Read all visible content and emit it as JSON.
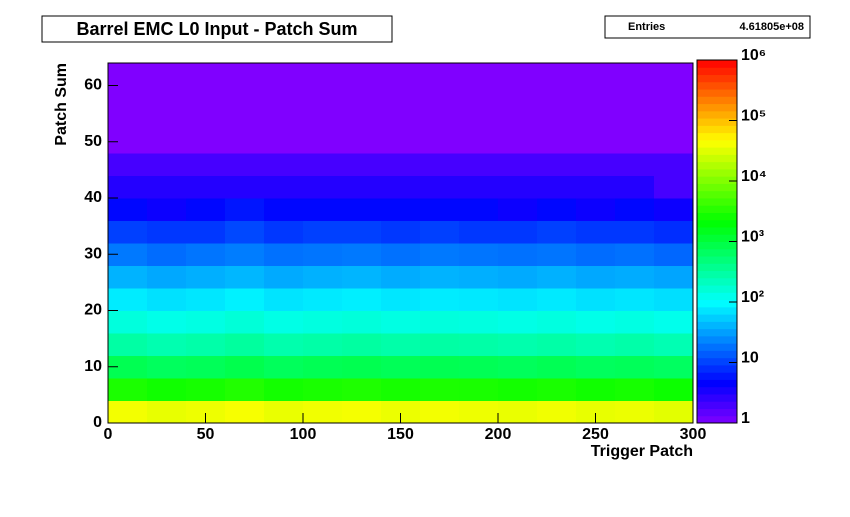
{
  "chart_data": {
    "type": "heatmap",
    "title": "Barrel EMC L0 Input - Patch Sum",
    "stats_label": "Entries",
    "stats_value": "4.61805e+08",
    "x_label": "Trigger Patch",
    "y_label": "Patch Sum",
    "xlim": [
      0,
      300
    ],
    "ylim": [
      0,
      64
    ],
    "xticks": [
      0,
      50,
      100,
      150,
      200,
      250,
      300
    ],
    "yticks": [
      0,
      10,
      20,
      30,
      40,
      50,
      60
    ],
    "xbins": [
      0,
      20,
      40,
      60,
      80,
      100,
      120,
      140,
      160,
      180,
      200,
      220,
      240,
      260,
      280,
      300
    ],
    "ybins": [
      0,
      4,
      8,
      12,
      16,
      20,
      24,
      28,
      32,
      36,
      40,
      44,
      48,
      52,
      56,
      60,
      64
    ],
    "zlim": [
      1,
      1000000
    ],
    "zscale": "log",
    "zticks": [
      {
        "value": 1,
        "label": "1"
      },
      {
        "value": 10,
        "label": "10"
      },
      {
        "value": 100,
        "label": "10²"
      },
      {
        "value": 1000,
        "label": "10³"
      },
      {
        "value": 10000,
        "label": "10⁴"
      },
      {
        "value": 100000,
        "label": "10⁵"
      },
      {
        "value": 1000000,
        "label": "10⁶"
      }
    ],
    "values": [
      [
        40000,
        35000,
        38000,
        42000,
        36000,
        39000,
        41000,
        37000,
        40000,
        38000,
        36000,
        39000,
        35000,
        37000,
        33000
      ],
      [
        3000,
        2600,
        2800,
        3200,
        2700,
        2900,
        3100,
        2800,
        3000,
        2900,
        2700,
        2900,
        2600,
        2800,
        2500
      ],
      [
        800,
        700,
        750,
        850,
        720,
        780,
        820,
        760,
        800,
        770,
        720,
        780,
        700,
        740,
        680
      ],
      [
        300,
        260,
        280,
        320,
        270,
        290,
        310,
        280,
        300,
        290,
        270,
        290,
        260,
        280,
        250
      ],
      [
        150,
        130,
        140,
        160,
        135,
        145,
        155,
        140,
        150,
        145,
        135,
        145,
        130,
        140,
        125
      ],
      [
        80,
        70,
        75,
        85,
        72,
        78,
        82,
        75,
        80,
        77,
        72,
        78,
        70,
        74,
        68
      ],
      [
        40,
        35,
        38,
        42,
        36,
        39,
        41,
        37,
        40,
        38,
        36,
        39,
        35,
        37,
        34
      ],
      [
        20,
        17,
        19,
        21,
        18,
        19,
        20,
        18,
        20,
        19,
        18,
        19,
        17,
        18,
        16
      ],
      [
        10,
        9,
        9,
        11,
        9,
        10,
        10,
        9,
        10,
        9,
        9,
        10,
        9,
        9,
        8
      ],
      [
        5,
        4,
        5,
        6,
        5,
        5,
        5,
        5,
        5,
        5,
        4,
        5,
        4,
        5,
        4
      ],
      [
        3,
        3,
        3,
        3,
        3,
        3,
        3,
        3,
        3,
        3,
        3,
        3,
        3,
        3,
        2
      ],
      [
        2,
        2,
        2,
        2,
        2,
        2,
        2,
        2,
        2,
        2,
        2,
        2,
        2,
        2,
        2
      ],
      [
        1,
        1,
        1,
        1,
        1,
        1,
        1,
        1,
        1,
        1,
        1,
        1,
        1,
        1,
        1
      ],
      [
        1,
        1,
        1,
        1,
        1,
        1,
        1,
        1,
        1,
        1,
        1,
        1,
        1,
        1,
        1
      ],
      [
        1,
        1,
        1,
        1,
        1,
        1,
        1,
        1,
        1,
        1,
        1,
        1,
        1,
        1,
        1
      ],
      [
        1,
        1,
        1,
        1,
        1,
        1,
        1,
        1,
        1,
        1,
        1,
        1,
        1,
        1,
        1
      ]
    ]
  }
}
